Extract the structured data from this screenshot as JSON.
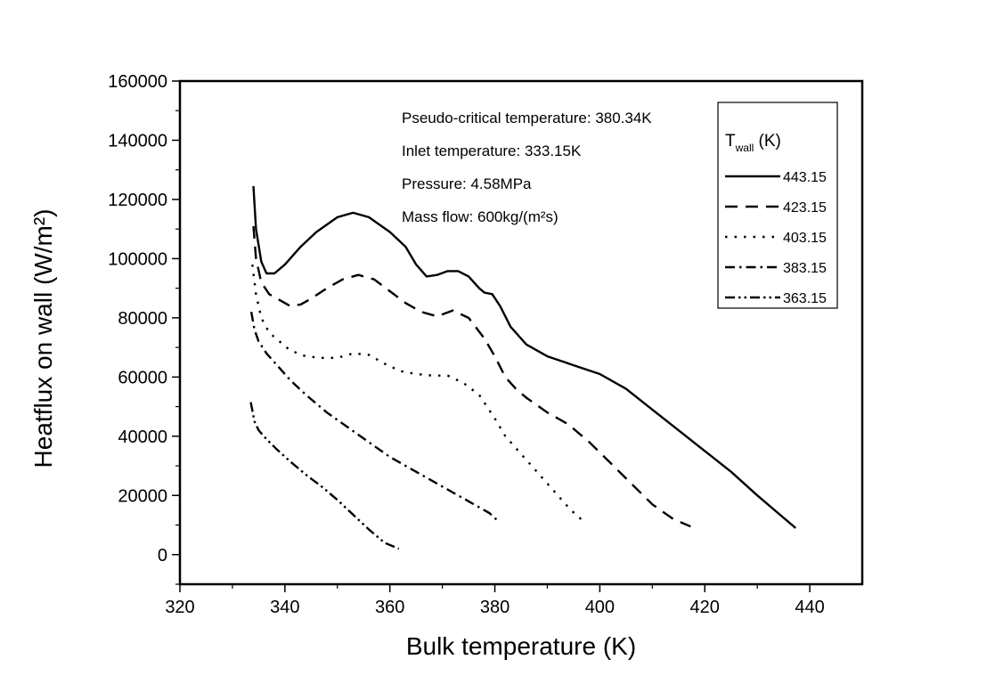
{
  "chart_data": {
    "type": "line",
    "xlabel": "Bulk temperature (K)",
    "ylabel": "Heatflux on wall (W/m²)",
    "xlim": [
      320,
      450
    ],
    "ylim": [
      -10000,
      160000
    ],
    "xticks": [
      320,
      340,
      360,
      380,
      400,
      420,
      440
    ],
    "yticks": [
      0,
      20000,
      40000,
      60000,
      80000,
      100000,
      120000,
      140000,
      160000
    ],
    "annotations": [
      "Pseudo-critical temperature: 380.34K",
      "Inlet temperature: 333.15K",
      "Pressure: 4.58MPa",
      "Mass flow: 600kg/(m²s)"
    ],
    "legend": {
      "title": "T_wall (K)",
      "position": "top-right"
    },
    "series": [
      {
        "name": "443.15",
        "dash": "solid",
        "x": [
          334.0,
          334.5,
          335.5,
          336.5,
          338,
          340,
          343,
          346,
          350,
          353,
          356,
          360,
          363,
          365,
          367,
          369,
          371,
          373,
          375,
          377,
          378,
          379.5,
          381,
          383,
          386,
          390,
          395,
          400,
          405,
          410,
          415,
          420,
          425,
          430,
          437.3
        ],
        "y": [
          124500,
          110000,
          99000,
          95000,
          95000,
          98000,
          104000,
          109000,
          114000,
          115500,
          114000,
          109000,
          104000,
          98000,
          94000,
          94500,
          95800,
          95800,
          94000,
          90000,
          88500,
          88000,
          84000,
          77000,
          71000,
          67000,
          64000,
          61000,
          56000,
          49000,
          42000,
          35000,
          28000,
          20000,
          9000
        ]
      },
      {
        "name": "423.15",
        "dash": "long-dash",
        "x": [
          334.0,
          334.5,
          335.5,
          337,
          339,
          341,
          343,
          345,
          348,
          351,
          354,
          357,
          360,
          363,
          366,
          369,
          372,
          375,
          378,
          380,
          382,
          384,
          386,
          390,
          394,
          398,
          402,
          406,
          410,
          414,
          417.3
        ],
        "y": [
          111000,
          100000,
          92000,
          88000,
          86000,
          84000,
          84500,
          86500,
          90000,
          93000,
          94500,
          93000,
          89000,
          85000,
          82000,
          80500,
          82500,
          80000,
          73000,
          67000,
          60000,
          56000,
          53000,
          48000,
          44000,
          38000,
          31000,
          24000,
          17000,
          12000,
          9500
        ]
      },
      {
        "name": "403.15",
        "dash": "dotted",
        "x": [
          333.8,
          334.5,
          335.5,
          337,
          339,
          341,
          344,
          347,
          350,
          353,
          356,
          359,
          362,
          365,
          368,
          371,
          374,
          377,
          380,
          382,
          384,
          386,
          388,
          390,
          392,
          394,
          396,
          397
        ],
        "y": [
          98000,
          88000,
          80000,
          75000,
          72000,
          69000,
          67000,
          66500,
          66500,
          68000,
          67500,
          64500,
          62000,
          61000,
          60500,
          60500,
          58000,
          54000,
          46000,
          40000,
          36000,
          32000,
          28000,
          24000,
          20000,
          16000,
          12500,
          11500
        ]
      },
      {
        "name": "383.15",
        "dash": "dash-dot",
        "x": [
          333.6,
          334.2,
          335,
          336.5,
          338.5,
          341,
          344,
          348,
          352,
          356,
          360,
          364,
          368,
          372,
          375,
          377,
          379,
          380.5
        ],
        "y": [
          82000,
          76000,
          72000,
          68000,
          64000,
          59000,
          54000,
          48000,
          43000,
          38000,
          33000,
          29000,
          25000,
          21000,
          18000,
          16000,
          14000,
          11500
        ]
      },
      {
        "name": "363.15",
        "dash": "dash-dot-dot",
        "x": [
          333.5,
          334.2,
          335,
          336.5,
          338.5,
          341,
          344,
          347,
          350,
          353,
          356,
          359,
          361.7
        ],
        "y": [
          51500,
          45000,
          42000,
          39000,
          35500,
          31500,
          27000,
          23000,
          18500,
          13500,
          8500,
          4000,
          2000
        ]
      }
    ]
  }
}
